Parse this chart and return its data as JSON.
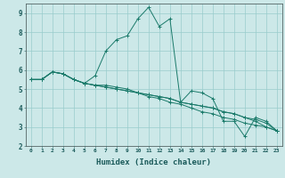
{
  "xlabel": "Humidex (Indice chaleur)",
  "ylabel": "",
  "background_color": "#cce8e8",
  "grid_color": "#99cccc",
  "line_color": "#1a7a6a",
  "xlim": [
    -0.5,
    23.5
  ],
  "ylim": [
    2,
    9.5
  ],
  "xtick_labels": [
    "0",
    "1",
    "2",
    "3",
    "4",
    "5",
    "6",
    "7",
    "8",
    "9",
    "10",
    "11",
    "12",
    "13",
    "14",
    "15",
    "16",
    "17",
    "18",
    "19",
    "20",
    "21",
    "22",
    "23"
  ],
  "ytick_labels": [
    "2",
    "3",
    "4",
    "5",
    "6",
    "7",
    "8",
    "9"
  ],
  "series": [
    [
      5.5,
      5.5,
      5.9,
      5.8,
      5.5,
      5.3,
      5.7,
      7.0,
      7.6,
      7.8,
      8.7,
      9.3,
      8.3,
      8.7,
      4.3,
      4.9,
      4.8,
      4.5,
      3.3,
      3.3,
      2.5,
      3.5,
      3.3,
      2.8
    ],
    [
      5.5,
      5.5,
      5.9,
      5.8,
      5.5,
      5.3,
      5.2,
      5.2,
      5.1,
      5.0,
      4.8,
      4.6,
      4.5,
      4.3,
      4.2,
      4.0,
      3.8,
      3.7,
      3.5,
      3.4,
      3.2,
      3.1,
      3.0,
      2.8
    ],
    [
      5.5,
      5.5,
      5.9,
      5.8,
      5.5,
      5.3,
      5.2,
      5.1,
      5.0,
      4.9,
      4.8,
      4.7,
      4.6,
      4.5,
      4.3,
      4.2,
      4.1,
      4.0,
      3.8,
      3.7,
      3.5,
      3.4,
      3.2,
      2.8
    ],
    [
      5.5,
      5.5,
      5.9,
      5.8,
      5.5,
      5.3,
      5.2,
      5.1,
      5.0,
      4.9,
      4.8,
      4.7,
      4.6,
      4.5,
      4.3,
      4.2,
      4.1,
      4.0,
      3.8,
      3.7,
      3.5,
      3.3,
      3.0,
      2.8
    ]
  ]
}
